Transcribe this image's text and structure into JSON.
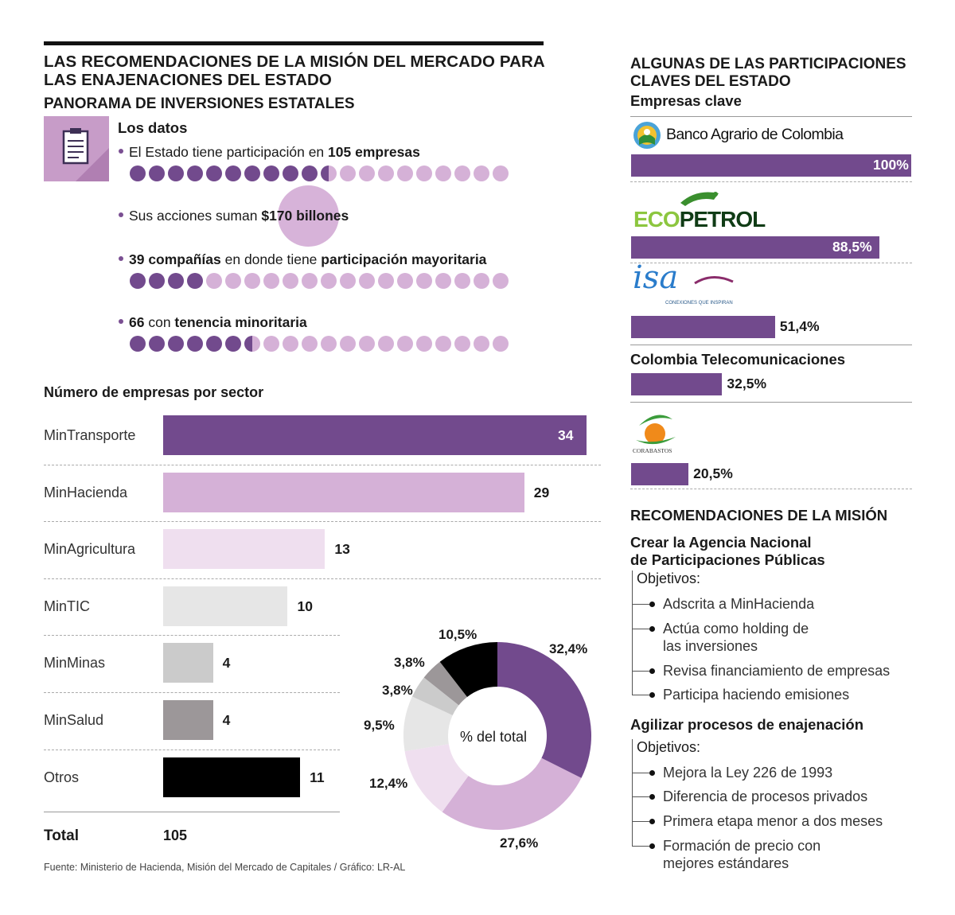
{
  "header": {
    "title": "LAS RECOMENDACIONES DE LA MISIÓN DEL MERCADO PARA LAS ENAJENACIONES DEL ESTADO",
    "subtitle": "PANORAMA DE INVERSIONES ESTATALES"
  },
  "los_datos": {
    "heading": "Los datos",
    "icon": "clipboard-icon",
    "fact1": {
      "pre": "El Estado tiene participación en ",
      "bold": "105 empresas"
    },
    "fact2": {
      "pre": "Sus acciones suman ",
      "bold": "$170 billones"
    },
    "fact3": {
      "bold1": "39 compañías",
      "mid": " en donde tiene ",
      "bold2": "participación mayoritaria"
    },
    "fact4": {
      "bold1": "66",
      "mid": " con ",
      "bold2": "tenencia minoritaria"
    },
    "dots_total": 20,
    "row1_filled": 10.5,
    "row3_filled": 4,
    "row4_filled": 6.5
  },
  "chart_data": [
    {
      "type": "bar",
      "title": "Número de empresas por sector",
      "categories": [
        "MinTransporte",
        "MinHacienda",
        "MinAgricultura",
        "MinTIC",
        "MinMinas",
        "MinSalud",
        "Otros"
      ],
      "values": [
        34,
        29,
        13,
        10,
        4,
        4,
        11
      ],
      "colors": [
        "#724a8d",
        "#d5b1d7",
        "#efdfef",
        "#e6e6e6",
        "#cbcbcb",
        "#9c9799",
        "#000000"
      ],
      "total_label": "Total",
      "total_value": "105",
      "xlim": [
        0,
        34
      ]
    },
    {
      "type": "pie",
      "center_label": "% del total",
      "slices": [
        {
          "label": "32,4%",
          "value": 32.4,
          "color": "#724a8d"
        },
        {
          "label": "27,6%",
          "value": 27.6,
          "color": "#d5b1d7"
        },
        {
          "label": "12,4%",
          "value": 12.4,
          "color": "#efdfef"
        },
        {
          "label": "9,5%",
          "value": 9.5,
          "color": "#e6e6e6"
        },
        {
          "label": "3,8%",
          "value": 3.8,
          "color": "#cbcbcb"
        },
        {
          "label": "3,8%",
          "value": 3.8,
          "color": "#9c9799"
        },
        {
          "label": "10,5%",
          "value": 10.5,
          "color": "#000000"
        }
      ]
    },
    {
      "type": "bar",
      "title": "ALGUNAS DE LAS PARTICIPACIONES CLAVES DEL ESTADO",
      "subtitle": "Empresas clave",
      "categories": [
        "Banco Agrario de Colombia",
        "Ecopetrol",
        "ISA",
        "Colombia Telecomunicaciones",
        "Corabastos"
      ],
      "values": [
        100,
        88.5,
        51.4,
        32.5,
        20.5
      ],
      "value_labels": [
        "100%",
        "88,5%",
        "51,4%",
        "32,5%",
        "20,5%"
      ],
      "xlim": [
        0,
        100
      ]
    }
  ],
  "empresas": {
    "banco_logo_text": "Banco Agrario de Colombia",
    "ecopetrol_logo_text": "ECOPETROL",
    "isa_logo_text": "isa",
    "isa_tagline": "CONEXIONES QUE INSPIRAN",
    "telecom_name": "Colombia Telecomunicaciones",
    "corabastos_logo_text": "CORABASTOS"
  },
  "recomendaciones": {
    "title": "RECOMENDACIONES DE LA MISIÓN",
    "rec1": {
      "heading_line1": "Crear la Agencia Nacional",
      "heading_line2": "de Participaciones Públicas",
      "objetivos": "Objetivos:",
      "items": [
        [
          "Adscrita a MinHacienda"
        ],
        [
          "Actúa como holding de",
          "las inversiones"
        ],
        [
          "Revisa financiamiento de empresas"
        ],
        [
          "Participa haciendo emisiones"
        ]
      ]
    },
    "rec2": {
      "heading": "Agilizar procesos de enajenación",
      "objetivos": "Objetivos:",
      "items": [
        [
          "Mejora la Ley 226 de 1993"
        ],
        [
          "Diferencia de procesos privados"
        ],
        [
          "Primera etapa menor a dos meses"
        ],
        [
          "Formación de precio con",
          "mejores estándares"
        ]
      ]
    }
  },
  "source": "Fuente: Ministerio de Hacienda, Misión del Mercado de Capitales / Gráfico: LR-AL"
}
